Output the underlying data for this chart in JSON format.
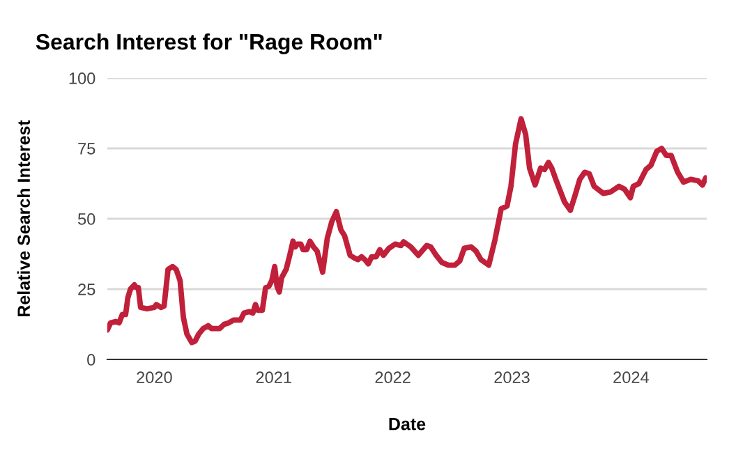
{
  "chart_data": {
    "type": "line",
    "title": "Search Interest for \"Rage Room\"",
    "xlabel": "Date",
    "ylabel": "Relative Search Interest",
    "xlim": [
      "2019-08-10",
      "2024-08-20"
    ],
    "ylim": [
      0,
      100
    ],
    "yticks": [
      0,
      25,
      50,
      75,
      100
    ],
    "xticks": [
      {
        "value": "2020-01-01",
        "label": "2020"
      },
      {
        "value": "2021-01-01",
        "label": "2021"
      },
      {
        "value": "2022-01-01",
        "label": "2022"
      },
      {
        "value": "2023-01-01",
        "label": "2023"
      },
      {
        "value": "2024-01-01",
        "label": "2024"
      }
    ],
    "grid": "y",
    "marker": "none",
    "line_style": "solid",
    "series": [
      {
        "color": "#c1203a",
        "x": [
          "2019-08-10",
          "2019-08-20",
          "2019-09-05",
          "2019-09-15",
          "2019-09-25",
          "2019-10-05",
          "2019-10-12",
          "2019-10-20",
          "2019-11-01",
          "2019-11-07",
          "2019-11-13",
          "2019-11-20",
          "2019-12-10",
          "2020-01-01",
          "2020-01-07",
          "2020-01-22",
          "2020-01-31",
          "2020-02-12",
          "2020-02-26",
          "2020-03-08",
          "2020-03-20",
          "2020-03-30",
          "2020-04-10",
          "2020-04-25",
          "2020-05-05",
          "2020-05-16",
          "2020-05-30",
          "2020-06-14",
          "2020-06-24",
          "2020-07-05",
          "2020-07-19",
          "2020-08-02",
          "2020-08-16",
          "2020-08-31",
          "2020-09-21",
          "2020-10-02",
          "2020-10-19",
          "2020-10-29",
          "2020-11-06",
          "2020-11-13",
          "2020-11-27",
          "2020-12-07",
          "2020-12-17",
          "2020-12-26",
          "2021-01-04",
          "2021-01-11",
          "2021-01-18",
          "2021-01-25",
          "2021-02-08",
          "2021-02-19",
          "2021-03-01",
          "2021-03-08",
          "2021-03-15",
          "2021-03-25",
          "2021-04-01",
          "2021-04-12",
          "2021-04-22",
          "2021-05-03",
          "2021-05-14",
          "2021-05-31",
          "2021-06-14",
          "2021-06-28",
          "2021-07-12",
          "2021-07-26",
          "2021-08-06",
          "2021-08-23",
          "2021-09-06",
          "2021-09-16",
          "2021-09-27",
          "2021-10-07",
          "2021-10-18",
          "2021-10-28",
          "2021-11-11",
          "2021-11-22",
          "2021-12-03",
          "2021-12-20",
          "2022-01-08",
          "2022-01-26",
          "2022-02-03",
          "2022-02-25",
          "2022-03-20",
          "2022-04-15",
          "2022-04-27",
          "2022-05-14",
          "2022-05-31",
          "2022-06-20",
          "2022-07-10",
          "2022-07-25",
          "2022-08-08",
          "2022-08-29",
          "2022-09-13",
          "2022-09-28",
          "2022-10-22",
          "2022-11-10",
          "2022-11-29",
          "2022-12-17",
          "2022-12-29",
          "2023-01-12",
          "2023-01-29",
          "2023-02-12",
          "2023-02-24",
          "2023-03-13",
          "2023-03-30",
          "2023-04-11",
          "2023-04-23",
          "2023-05-03",
          "2023-05-17",
          "2023-06-11",
          "2023-06-29",
          "2023-07-14",
          "2023-07-28",
          "2023-08-12",
          "2023-08-26",
          "2023-09-10",
          "2023-10-08",
          "2023-10-30",
          "2023-11-25",
          "2023-12-12",
          "2023-12-30",
          "2024-01-08",
          "2024-01-25",
          "2024-02-16",
          "2024-03-02",
          "2024-03-20",
          "2024-04-04",
          "2024-04-18",
          "2024-05-03",
          "2024-05-23",
          "2024-06-10",
          "2024-07-02",
          "2024-07-24",
          "2024-08-07",
          "2024-08-17"
        ],
        "values": [
          10.5,
          13,
          13.5,
          13,
          16,
          16,
          22,
          25,
          26.5,
          25.5,
          25.5,
          18.5,
          18,
          18.5,
          19.5,
          18.5,
          19,
          32,
          33,
          32,
          28,
          15,
          9,
          6,
          6.5,
          9,
          11,
          12,
          11,
          11,
          11,
          12.5,
          13,
          14,
          14,
          16.5,
          17,
          16.5,
          19.5,
          17.5,
          17.5,
          25.5,
          26,
          28,
          33,
          26,
          24,
          29,
          32,
          37,
          42,
          40,
          41,
          41,
          39,
          39,
          42,
          40,
          38.5,
          31,
          43,
          49,
          52.5,
          46,
          44,
          37,
          36,
          35.5,
          36.5,
          35.5,
          34,
          36.5,
          36.5,
          39,
          37,
          39.5,
          41,
          40.5,
          41.8,
          40,
          37,
          40.5,
          40,
          37,
          34.5,
          33.5,
          33.5,
          35,
          39.5,
          40,
          38.5,
          35.5,
          33.5,
          42.5,
          53.5,
          54.5,
          61.5,
          76.5,
          85.5,
          80,
          68,
          62,
          68,
          67.5,
          70,
          68,
          63.5,
          56,
          53,
          58.5,
          64,
          66.5,
          66,
          61.5,
          59,
          59.5,
          61.5,
          60.5,
          57.5,
          61.5,
          62.5,
          67.5,
          69,
          74,
          75,
          72.5,
          72.5,
          66.5,
          63,
          64,
          63.5,
          62,
          64.5
        ]
      }
    ]
  }
}
